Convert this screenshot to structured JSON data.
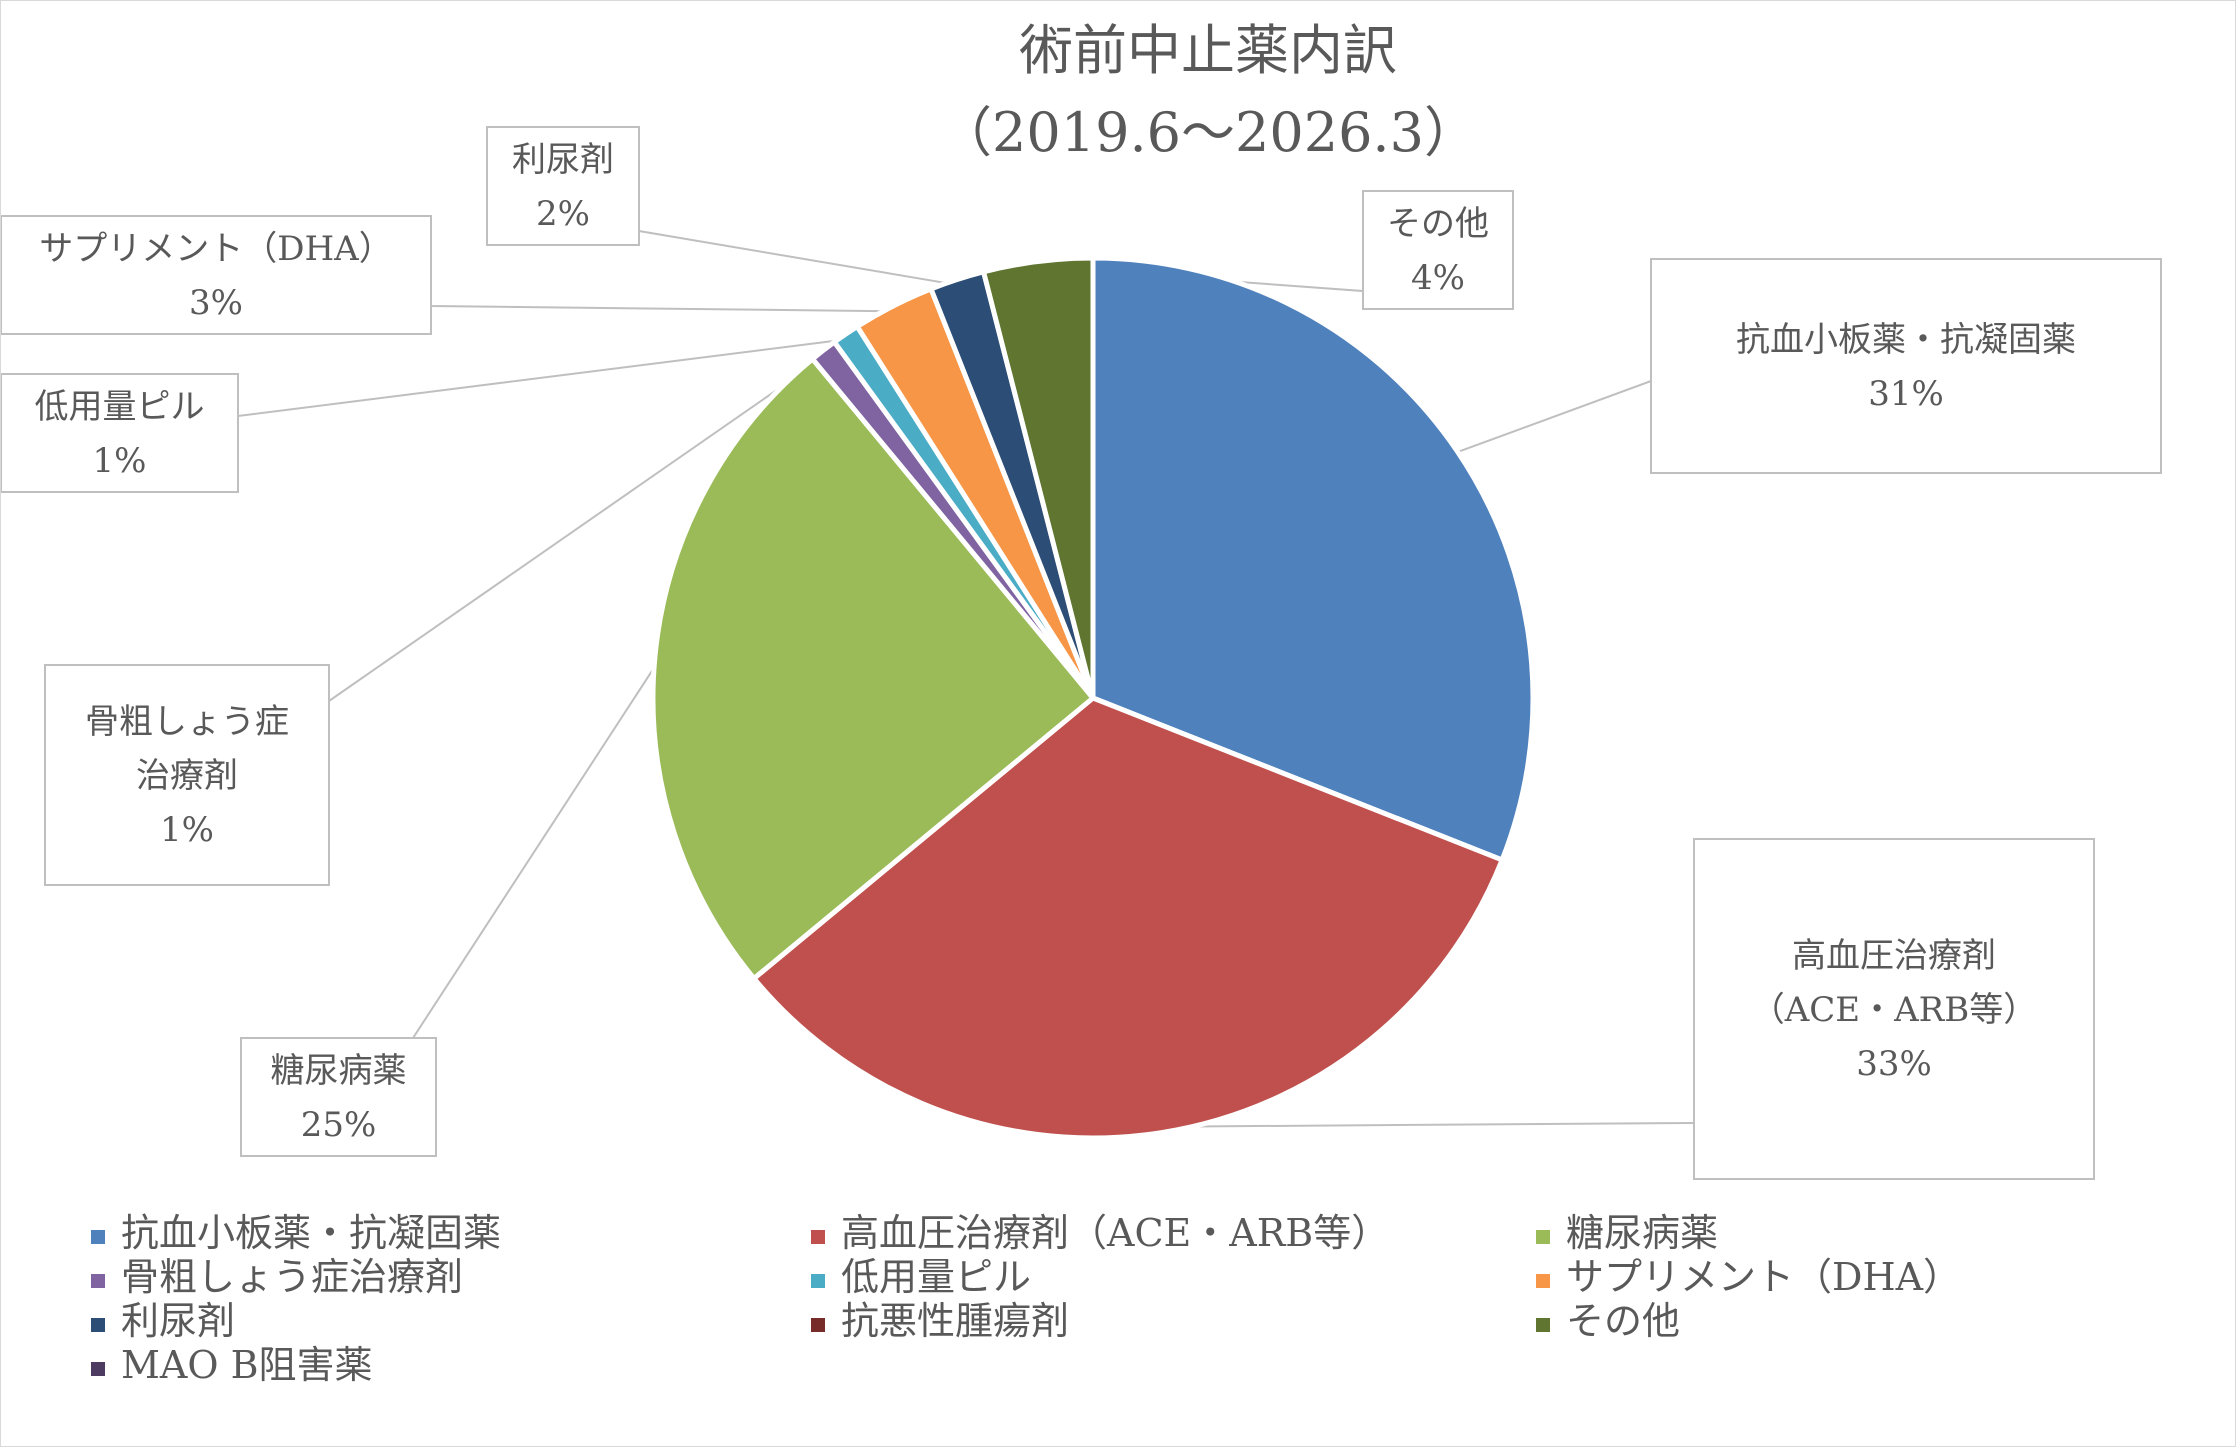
{
  "chart_data": {
    "type": "pie",
    "title": [
      "術前中止薬内訳",
      "（2019.6～2026.3）"
    ],
    "slices": [
      {
        "label": "抗血小板薬・抗凝固薬",
        "value": 31,
        "color": "#4F81BD",
        "callout": [
          "抗血小板薬・抗凝固薬",
          "31%"
        ]
      },
      {
        "label": "高血圧治療剤（ACE・ARB等）",
        "value": 33,
        "color": "#C0504D",
        "callout": [
          "高血圧治療剤",
          "（ACE・ARB等）",
          "33%"
        ]
      },
      {
        "label": "糖尿病薬",
        "value": 25,
        "color": "#9BBB59",
        "callout": [
          "糖尿病薬",
          "25%"
        ]
      },
      {
        "label": "骨粗しょう症治療剤",
        "value": 1,
        "color": "#8064A2",
        "callout": [
          "骨粗しょう症",
          "治療剤",
          "1%"
        ]
      },
      {
        "label": "低用量ピル",
        "value": 1,
        "color": "#4BACC6",
        "callout": [
          "低用量ピル",
          "1%"
        ]
      },
      {
        "label": "サプリメント（DHA）",
        "value": 3,
        "color": "#F79646",
        "callout": [
          "サプリメント（DHA）",
          "3%"
        ]
      },
      {
        "label": "利尿剤",
        "value": 2,
        "color": "#2C4D75",
        "callout": [
          "利尿剤",
          "2%"
        ]
      },
      {
        "label": "抗悪性腫瘍剤",
        "value": 0,
        "color": "#772C2A",
        "callout": null
      },
      {
        "label": "その他",
        "value": 4,
        "color": "#5F7530",
        "callout": [
          "その他",
          "4%"
        ]
      },
      {
        "label": "MAO B阻害薬",
        "value": 0,
        "color": "#4D3B62",
        "callout": null
      }
    ],
    "legend_position": "bottom"
  }
}
